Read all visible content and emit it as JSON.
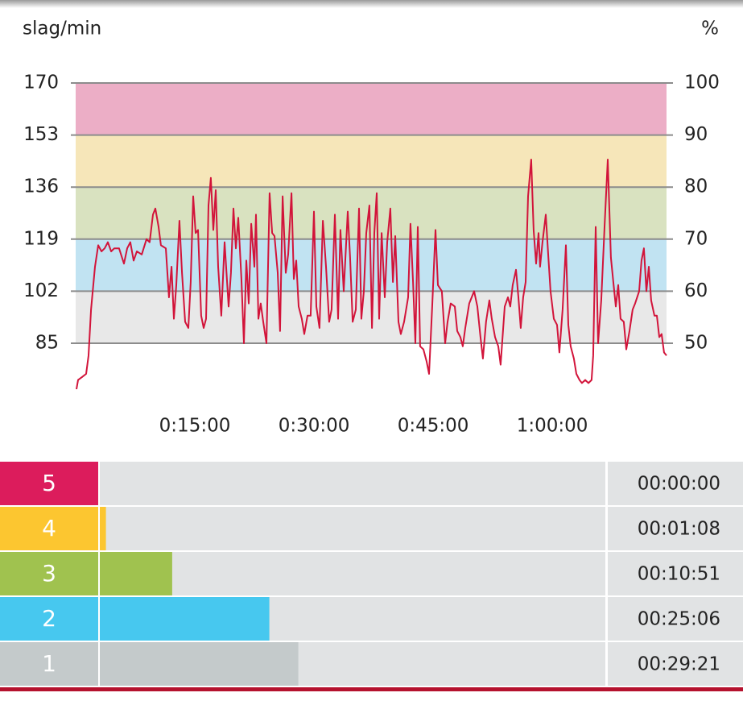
{
  "chart_data": {
    "type": "line",
    "y_label": "slag/min",
    "y2_label": "%",
    "color": "#d2143a",
    "xlim": [
      0,
      4463
    ],
    "ylim": [
      68,
      170
    ],
    "y2lim": [
      40,
      100
    ],
    "xticks": [
      {
        "value": 900,
        "label": "0:15:00"
      },
      {
        "value": 1800,
        "label": "0:30:00"
      },
      {
        "value": 2700,
        "label": "0:45:00"
      },
      {
        "value": 3600,
        "label": "1:00:00"
      }
    ],
    "yticks": [
      85,
      102,
      119,
      136,
      153,
      170
    ],
    "y2ticks": [
      50,
      60,
      70,
      80,
      90,
      100
    ],
    "grid": true,
    "bands": [
      {
        "from": 153,
        "to": 170,
        "color": "#ecaec6"
      },
      {
        "from": 136,
        "to": 153,
        "color": "#f6e6b9"
      },
      {
        "from": 119,
        "to": 136,
        "color": "#d9e2c0"
      },
      {
        "from": 102,
        "to": 119,
        "color": "#c1e3f2"
      },
      {
        "from": 85,
        "to": 102,
        "color": "#e8e8e8"
      }
    ],
    "x": [
      6,
      18,
      49,
      79,
      97,
      116,
      146,
      170,
      195,
      219,
      243,
      268,
      292,
      328,
      365,
      389,
      413,
      438,
      462,
      499,
      535,
      559,
      584,
      602,
      626,
      644,
      681,
      705,
      724,
      742,
      760,
      784,
      803,
      827,
      851,
      869,
      888,
      906,
      924,
      948,
      967,
      985,
      1003,
      1021,
      1040,
      1058,
      1076,
      1100,
      1125,
      1155,
      1173,
      1192,
      1210,
      1228,
      1252,
      1271,
      1289,
      1307,
      1326,
      1350,
      1362,
      1380,
      1398,
      1417,
      1441,
      1465,
      1484,
      1502,
      1526,
      1544,
      1563,
      1587,
      1605,
      1630,
      1648,
      1666,
      1684,
      1708,
      1727,
      1751,
      1775,
      1800,
      1818,
      1842,
      1867,
      1891,
      1915,
      1933,
      1958,
      1982,
      2000,
      2025,
      2055,
      2073,
      2092,
      2116,
      2140,
      2158,
      2177,
      2195,
      2219,
      2238,
      2256,
      2274,
      2292,
      2311,
      2335,
      2353,
      2377,
      2396,
      2414,
      2438,
      2456,
      2481,
      2511,
      2529,
      2548,
      2566,
      2584,
      2602,
      2627,
      2651,
      2669,
      2693,
      2718,
      2736,
      2766,
      2791,
      2809,
      2833,
      2864,
      2882,
      2906,
      2924,
      2943,
      2973,
      3010,
      3034,
      3058,
      3076,
      3100,
      3125,
      3143,
      3168,
      3192,
      3210,
      3241,
      3265,
      3283,
      3301,
      3326,
      3344,
      3362,
      3380,
      3399,
      3417,
      3441,
      3459,
      3478,
      3496,
      3508,
      3526,
      3551,
      3569,
      3587,
      3612,
      3636,
      3654,
      3678,
      3703,
      3721,
      3739,
      3763,
      3782,
      3806,
      3824,
      3849,
      3873,
      3897,
      3909,
      3928,
      3946,
      3970,
      3995,
      4019,
      4043,
      4061,
      4080,
      4098,
      4116,
      4140,
      4159,
      4183,
      4207,
      4226,
      4256,
      4274,
      4292,
      4311,
      4329,
      4347,
      4372,
      4390,
      4408,
      4426,
      4444,
      4463
    ],
    "values": [
      70,
      73,
      74,
      75,
      81,
      96,
      110,
      117,
      115,
      116,
      118,
      115,
      116,
      116,
      111,
      116,
      118,
      112,
      115,
      114,
      119,
      118,
      127,
      129,
      123,
      117,
      116,
      100,
      110,
      93,
      104,
      125,
      108,
      92,
      90,
      105,
      133,
      121,
      122,
      94,
      90,
      93,
      130,
      139,
      122,
      135,
      110,
      94,
      118,
      97,
      108,
      129,
      116,
      126,
      106,
      85,
      112,
      98,
      124,
      110,
      127,
      93,
      98,
      92,
      85,
      134,
      121,
      120,
      108,
      89,
      133,
      108,
      114,
      134,
      106,
      112,
      97,
      93,
      88,
      94,
      94,
      128,
      97,
      90,
      125,
      110,
      92,
      96,
      127,
      93,
      122,
      102,
      128,
      113,
      92,
      96,
      129,
      93,
      102,
      121,
      130,
      90,
      121,
      134,
      93,
      121,
      100,
      118,
      129,
      105,
      120,
      92,
      88,
      92,
      100,
      124,
      105,
      85,
      123,
      84,
      83,
      79,
      75,
      97,
      122,
      104,
      102,
      85,
      92,
      98,
      97,
      89,
      87,
      84,
      90,
      98,
      102,
      97,
      87,
      80,
      92,
      99,
      93,
      87,
      84,
      78,
      97,
      100,
      97,
      104,
      109,
      100,
      90,
      100,
      105,
      133,
      145,
      122,
      111,
      121,
      110,
      118,
      127,
      114,
      102,
      93,
      91,
      82,
      96,
      117,
      91,
      84,
      80,
      75,
      73,
      72,
      73,
      72,
      73,
      81,
      123,
      85,
      99,
      123,
      145,
      113,
      105,
      97,
      104,
      93,
      92,
      83,
      89,
      96,
      98,
      102,
      112,
      116,
      102,
      110,
      99,
      94,
      94,
      87,
      88,
      82,
      81
    ]
  },
  "zones": [
    {
      "zone": 5,
      "color": "#dc1c5c",
      "duration": 0,
      "duration_label": "00:00:00"
    },
    {
      "zone": 4,
      "color": "#fcc630",
      "duration": 68,
      "duration_label": "00:01:08"
    },
    {
      "zone": 3,
      "color": "#a0c24f",
      "duration": 651,
      "duration_label": "00:10:51"
    },
    {
      "zone": 2,
      "color": "#47c8ef",
      "duration": 1506,
      "duration_label": "00:25:06"
    },
    {
      "zone": 1,
      "color": "#c4cacb",
      "duration": 1761,
      "duration_label": "00:29:21"
    }
  ]
}
